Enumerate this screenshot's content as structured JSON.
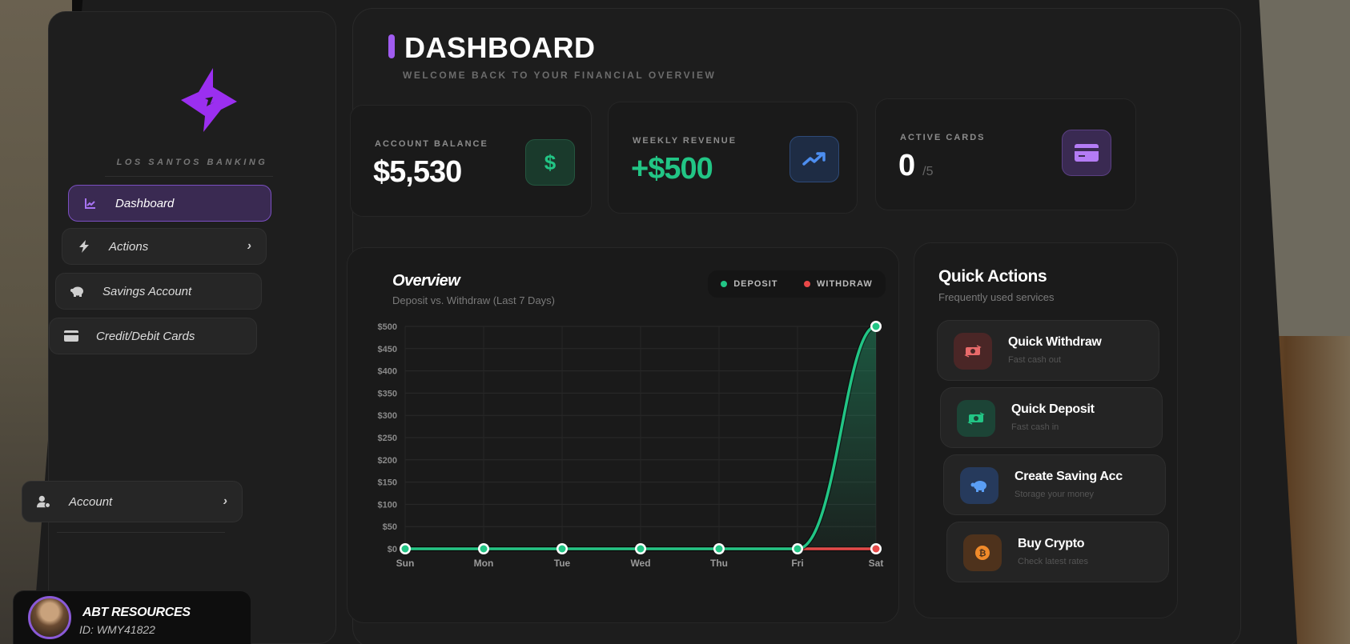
{
  "sidebar": {
    "brand": "LOS SANTOS BANKING",
    "items": [
      {
        "label": "Dashboard",
        "icon": "chart-line-icon",
        "active": true
      },
      {
        "label": "Actions",
        "icon": "bolt-icon",
        "has_chevron": true
      },
      {
        "label": "Savings Account",
        "icon": "piggy-bank-icon"
      },
      {
        "label": "Credit/Debit Cards",
        "icon": "credit-card-icon"
      }
    ],
    "account": {
      "label": "Account",
      "icon": "user-gear-icon",
      "chevron": "›"
    },
    "profile": {
      "name": "ABT RESOURCES",
      "id": "ID: WMY41822"
    },
    "chevron": "›"
  },
  "header": {
    "title": "DASHBOARD",
    "subtitle": "WELCOME BACK TO YOUR FINANCIAL OVERVIEW"
  },
  "stats": [
    {
      "label": "ACCOUNT BALANCE",
      "value": "$5,530",
      "icon": "dollar-icon",
      "color": "#22c585"
    },
    {
      "label": "WEEKLY REVENUE",
      "value": "+$500",
      "icon": "trending-up-icon",
      "color": "#4d8ef0"
    },
    {
      "label": "ACTIVE CARDS",
      "value": "0",
      "suffix": "/5",
      "icon": "credit-card-icon",
      "color": "#b47cf5"
    }
  ],
  "overview": {
    "title": "Overview",
    "subtitle": "Deposit vs. Withdraw (Last 7 Days)",
    "legend": [
      {
        "label": "DEPOSIT",
        "color": "#22c585"
      },
      {
        "label": "WITHDRAW",
        "color": "#e84848"
      }
    ]
  },
  "chart_data": {
    "type": "line",
    "title": "Overview",
    "subtitle": "Deposit vs. Withdraw (Last 7 Days)",
    "categories": [
      "Sun",
      "Mon",
      "Tue",
      "Wed",
      "Thu",
      "Fri",
      "Sat"
    ],
    "series": [
      {
        "name": "Deposit",
        "color": "#22c585",
        "values": [
          0,
          0,
          0,
          0,
          0,
          0,
          500
        ]
      },
      {
        "name": "Withdraw",
        "color": "#e84848",
        "values": [
          0,
          0,
          0,
          0,
          0,
          0,
          0
        ]
      }
    ],
    "yticks": [
      "$0",
      "$50",
      "$100",
      "$150",
      "$200",
      "$250",
      "$300",
      "$350",
      "$400",
      "$450",
      "$500"
    ],
    "ylim": [
      0,
      500
    ],
    "grid": true,
    "legend_position": "top-right"
  },
  "quick_actions": {
    "title": "Quick Actions",
    "subtitle": "Frequently used services",
    "items": [
      {
        "label": "Quick Withdraw",
        "desc": "Fast cash out",
        "icon": "money-bill-transfer-icon",
        "color": "#e86a6a",
        "bg": "#4a2626"
      },
      {
        "label": "Quick Deposit",
        "desc": "Fast cash in",
        "icon": "money-bill-transfer-icon",
        "color": "#22c585",
        "bg": "#1c4436"
      },
      {
        "label": "Create Saving Acc",
        "desc": "Storage your money",
        "icon": "piggy-bank-icon",
        "color": "#5a9ef5",
        "bg": "#263a5c"
      },
      {
        "label": "Buy Crypto",
        "desc": "Check latest rates",
        "icon": "bitcoin-icon",
        "color": "#f08a2a",
        "bg": "#4e321c"
      }
    ]
  }
}
